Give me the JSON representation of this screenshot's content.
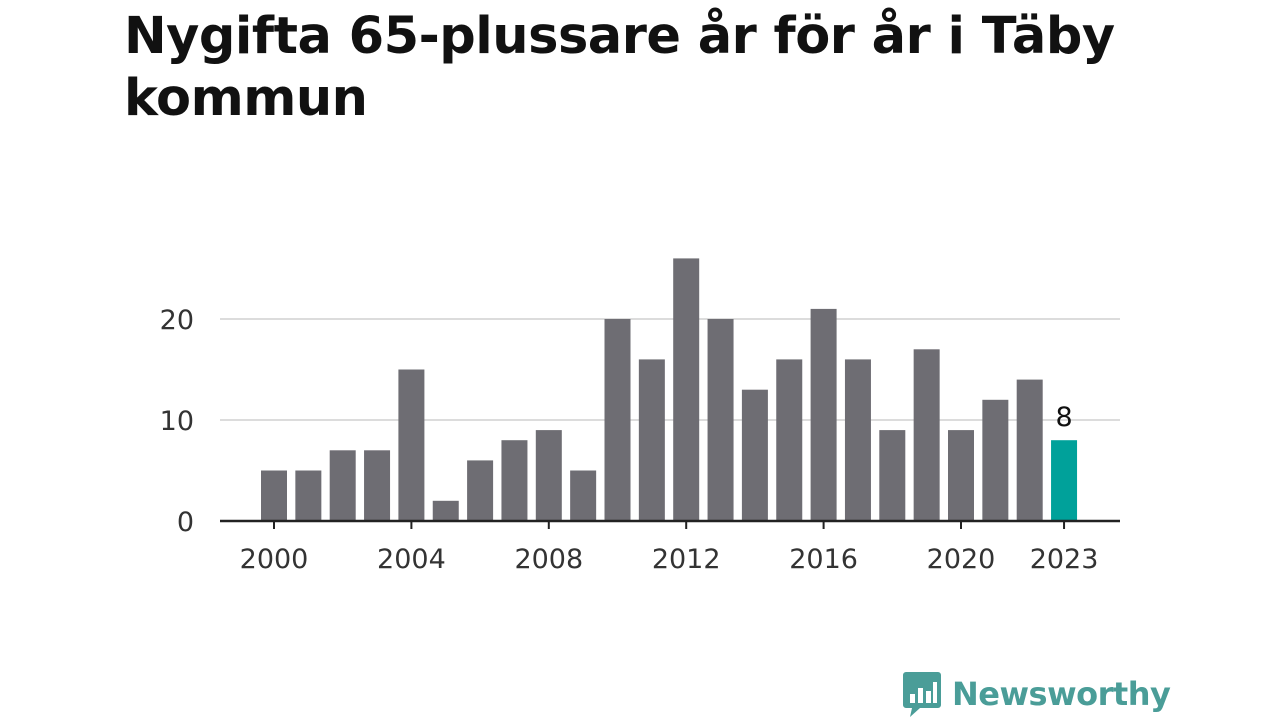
{
  "title": "Nygifta 65-plussare år för år i Täby kommun",
  "brand": {
    "name": "Newsworthy",
    "icon": "bar-chart-speech-bubble-icon",
    "color": "#4a9d98"
  },
  "colors": {
    "bar": "#6e6d73",
    "highlight": "#00a19a",
    "grid": "#dcdcdc",
    "axis": "#222222"
  },
  "chart_data": {
    "type": "bar",
    "title": "Nygifta 65-plussare år för år i Täby kommun",
    "xlabel": "",
    "ylabel": "",
    "categories": [
      "2000",
      "2001",
      "2002",
      "2003",
      "2004",
      "2005",
      "2006",
      "2007",
      "2008",
      "2009",
      "2010",
      "2011",
      "2012",
      "2013",
      "2014",
      "2015",
      "2016",
      "2017",
      "2018",
      "2019",
      "2020",
      "2021",
      "2022",
      "2023"
    ],
    "values": [
      5,
      5,
      7,
      7,
      15,
      2,
      6,
      8,
      9,
      5,
      20,
      16,
      26,
      20,
      13,
      16,
      21,
      16,
      9,
      17,
      9,
      12,
      14,
      8
    ],
    "highlight_index": 23,
    "x_tick_labels": [
      "2000",
      "2004",
      "2008",
      "2012",
      "2016",
      "2020",
      "2023"
    ],
    "y_ticks": [
      0,
      10,
      20
    ],
    "ylim": [
      0,
      26
    ],
    "grid": true,
    "legend": "none",
    "data_labels": [
      {
        "category": "2023",
        "text": "8"
      }
    ]
  }
}
